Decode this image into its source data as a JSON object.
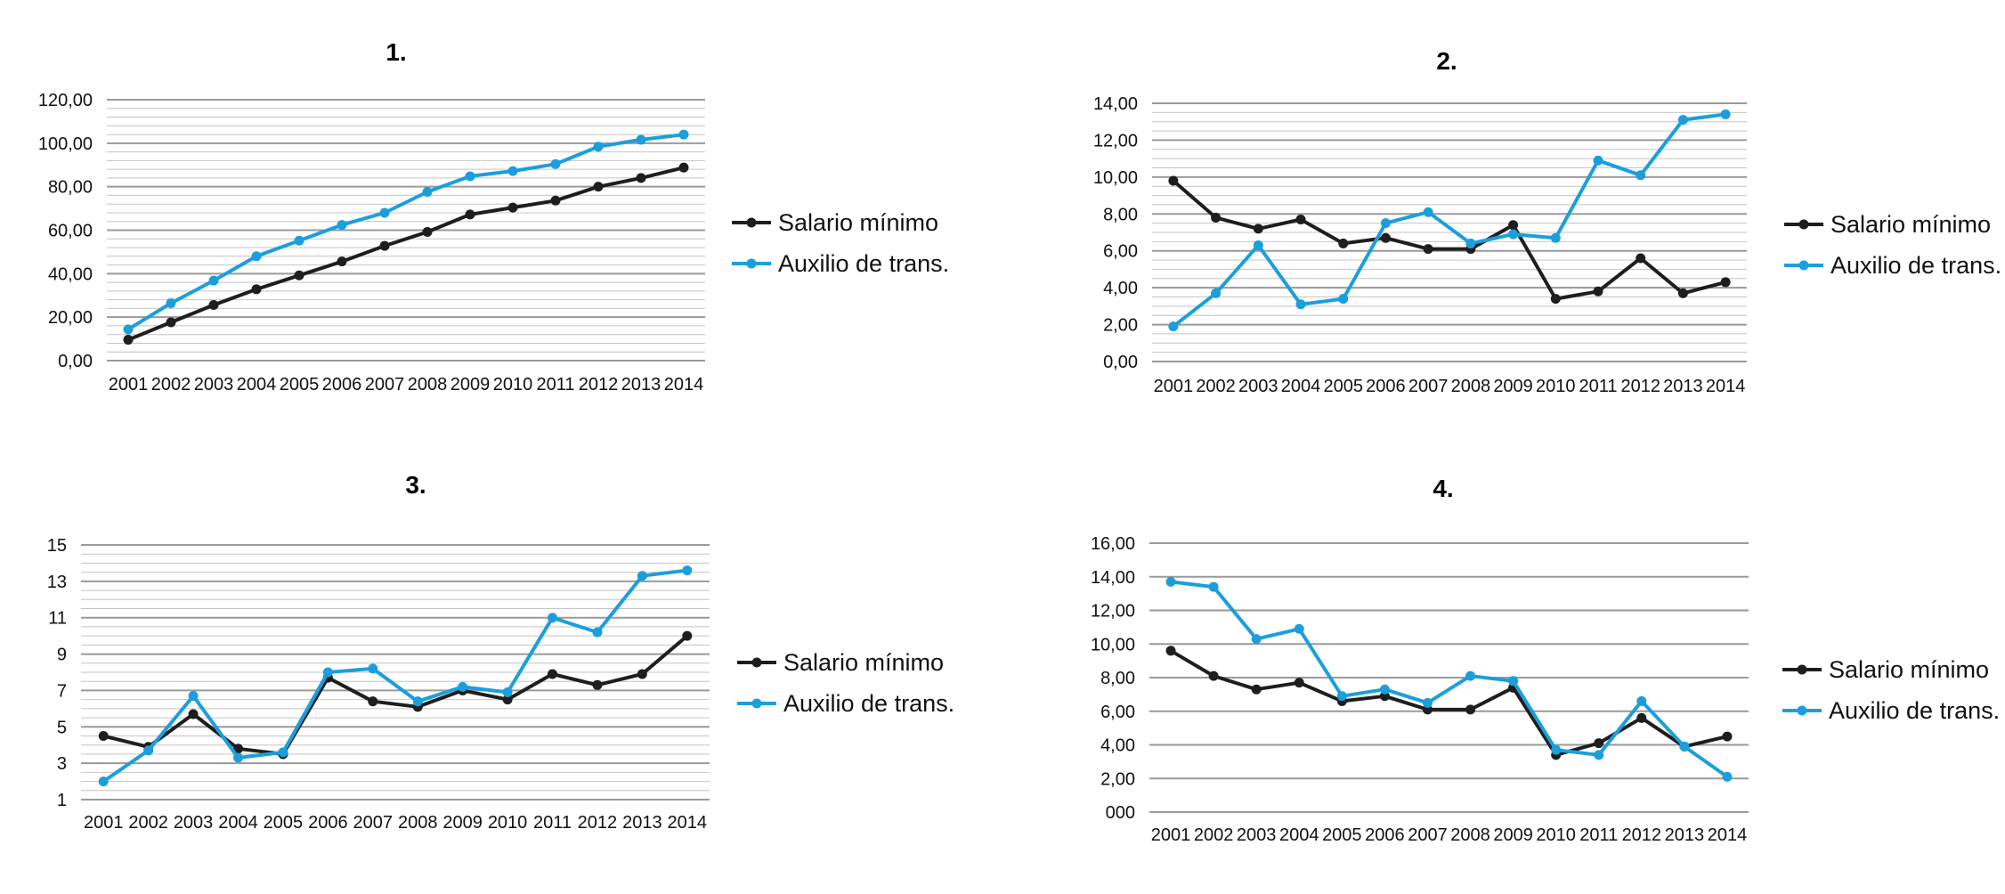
{
  "colors": {
    "salario": "#1e1e1e",
    "auxilio": "#1b9fdc"
  },
  "chart_data": [
    {
      "type": "line",
      "title": "1.",
      "x": [
        "2001",
        "2002",
        "2003",
        "2004",
        "2005",
        "2006",
        "2007",
        "2008",
        "2009",
        "2010",
        "2011",
        "2012",
        "2013",
        "2014"
      ],
      "ylim": [
        0,
        120
      ],
      "yticks": [
        0,
        20,
        40,
        60,
        80,
        100,
        120
      ],
      "ytick_labels": [
        "0,00",
        "20,00",
        "40,00",
        "60,00",
        "80,00",
        "100,00",
        "120,00"
      ],
      "minor_step": 4,
      "grid": true,
      "legend_position": "right",
      "series": [
        {
          "name": "Salario mínimo",
          "values": [
            9.6,
            17.6,
            25.6,
            32.8,
            39.2,
            45.6,
            52.8,
            59.2,
            67.2,
            70.4,
            73.6,
            80,
            84,
            88.8
          ]
        },
        {
          "name": "Auxilio de trans.",
          "values": [
            14.4,
            26.4,
            36.8,
            48,
            55.2,
            62.4,
            68,
            77.6,
            84.8,
            87.2,
            90.4,
            98.4,
            101.6,
            104
          ]
        }
      ]
    },
    {
      "type": "line",
      "title": "2.",
      "x": [
        "2001",
        "2002",
        "2003",
        "2004",
        "2005",
        "2006",
        "2007",
        "2008",
        "2009",
        "2010",
        "2011",
        "2012",
        "2013",
        "2014"
      ],
      "ylim": [
        0,
        14
      ],
      "yticks": [
        0,
        2,
        4,
        6,
        8,
        10,
        12,
        14
      ],
      "ytick_labels": [
        "0,00",
        "2,00",
        "4,00",
        "6,00",
        "8,00",
        "10,00",
        "12,00",
        "14,00"
      ],
      "minor_step": 0.5,
      "grid": true,
      "legend_position": "right",
      "series": [
        {
          "name": "Salario mínimo",
          "values": [
            9.8,
            7.8,
            7.2,
            7.7,
            6.4,
            6.7,
            6.1,
            6.1,
            7.4,
            3.4,
            3.8,
            5.6,
            3.7,
            4.3
          ]
        },
        {
          "name": "Auxilio de trans.",
          "values": [
            1.9,
            3.7,
            6.3,
            3.1,
            3.4,
            7.5,
            8.1,
            6.4,
            6.9,
            6.7,
            10.9,
            10.1,
            13.1,
            13.4
          ]
        }
      ]
    },
    {
      "type": "line",
      "title": "3.",
      "x": [
        "2001",
        "2002",
        "2003",
        "2004",
        "2005",
        "2006",
        "2007",
        "2008",
        "2009",
        "2010",
        "2011",
        "2012",
        "2013",
        "2014"
      ],
      "ylim": [
        1,
        15
      ],
      "yticks": [
        1,
        3,
        5,
        7,
        9,
        11,
        13,
        15
      ],
      "ytick_labels": [
        "1",
        "3",
        "5",
        "7",
        "9",
        "11",
        "13",
        "15"
      ],
      "minor_step": 0.5,
      "grid": true,
      "legend_position": "right",
      "series": [
        {
          "name": "Salario mínimo",
          "values": [
            4.5,
            3.9,
            5.7,
            3.8,
            3.5,
            7.7,
            6.4,
            6.1,
            7,
            6.5,
            7.9,
            7.3,
            7.9,
            10
          ]
        },
        {
          "name": "Auxilio de trans.",
          "values": [
            2,
            3.7,
            6.7,
            3.3,
            3.6,
            8,
            8.2,
            6.4,
            7.2,
            6.9,
            11,
            10.2,
            13.3,
            13.6
          ]
        }
      ]
    },
    {
      "type": "line",
      "title": "4.",
      "x": [
        "2001",
        "2002",
        "2003",
        "2004",
        "2005",
        "2006",
        "2007",
        "2008",
        "2009",
        "2010",
        "2011",
        "2012",
        "2013",
        "2014"
      ],
      "ylim": [
        0,
        16
      ],
      "yticks": [
        0,
        2,
        4,
        6,
        8,
        10,
        12,
        14,
        16
      ],
      "ytick_labels": [
        "000",
        "2,00",
        "4,00",
        "6,00",
        "8,00",
        "10,00",
        "12,00",
        "14,00",
        "16,00"
      ],
      "minor_step": 0,
      "grid": true,
      "legend_position": "right",
      "series": [
        {
          "name": "Salario mínimo",
          "values": [
            9.6,
            8.1,
            7.3,
            7.7,
            6.6,
            6.9,
            6.1,
            6.1,
            7.4,
            3.4,
            4.1,
            5.6,
            3.9,
            4.5
          ]
        },
        {
          "name": "Auxilio de trans.",
          "values": [
            13.7,
            13.4,
            10.3,
            10.9,
            6.9,
            7.3,
            6.5,
            8.1,
            7.8,
            3.7,
            3.4,
            6.6,
            3.9,
            2.1
          ]
        }
      ]
    }
  ]
}
